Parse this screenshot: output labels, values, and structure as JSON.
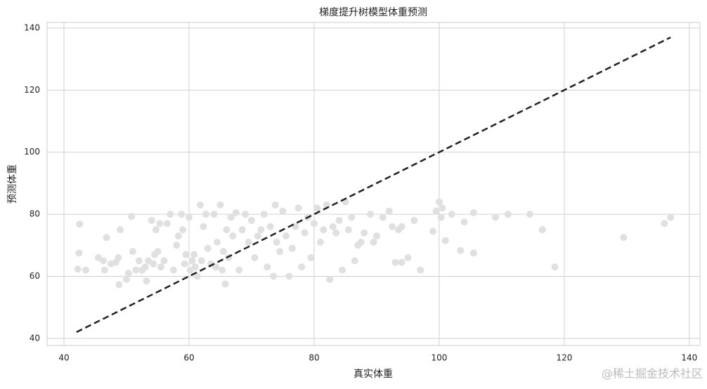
{
  "chart_data": {
    "type": "scatter",
    "title": "梯度提升树模型体重预测",
    "x_label": "真实体重",
    "y_label": "预测体重",
    "watermark": "@稀土掘金技术社区",
    "color": "#e0e0e0",
    "x": [
      42.2,
      42.4,
      42.5,
      43.5,
      45.5,
      46.3,
      46.5,
      46.8,
      47.5,
      48.3,
      48.7,
      48.8,
      49,
      50,
      50.3,
      50.8,
      51,
      51.5,
      52,
      52.5,
      53,
      53.2,
      53.5,
      54,
      54.3,
      54.5,
      54.7,
      55,
      55.3,
      55.5,
      56,
      56.5,
      57,
      57.5,
      58,
      58.3,
      58.8,
      59,
      59.3,
      59.5,
      60,
      60.2,
      60.5,
      60.8,
      61,
      61.3,
      61.8,
      62,
      62.3,
      62.7,
      63,
      63.5,
      64,
      64.3,
      64.5,
      65,
      65.3,
      65.5,
      65.8,
      66,
      66.3,
      66.7,
      67,
      67.5,
      68,
      68.5,
      69,
      69.5,
      70,
      70.5,
      71,
      71.5,
      72,
      72.5,
      73,
      73.5,
      73.8,
      74,
      74.5,
      75,
      75.5,
      76,
      76.5,
      77,
      77.5,
      78,
      78.5,
      79,
      79.5,
      80,
      80.5,
      81,
      81.5,
      82,
      82.5,
      83,
      83.5,
      84,
      84.5,
      85,
      85.5,
      86,
      86.5,
      87,
      87.5,
      88,
      89,
      89.5,
      90,
      91,
      92,
      92.5,
      93,
      93.5,
      94,
      94,
      95,
      96,
      97,
      99,
      99.5,
      100,
      100.5,
      101,
      102,
      104,
      105.5,
      105.5,
      109,
      111,
      114.5,
      116.5,
      118.5,
      129.5,
      136,
      137,
      103.4,
      100.3
    ],
    "y": [
      62.3,
      67.5,
      76.8,
      62,
      66,
      65,
      62,
      72.5,
      64,
      64.5,
      66,
      57.3,
      75,
      59,
      61,
      79.3,
      68,
      62,
      65,
      62,
      63,
      58.5,
      65,
      78,
      64,
      67,
      75,
      68,
      77,
      63,
      65,
      77,
      80,
      62,
      70,
      73,
      80,
      75,
      64,
      67,
      79,
      62,
      65,
      67,
      63,
      60,
      83,
      65,
      76,
      80,
      69,
      64,
      80,
      63,
      71,
      83,
      62,
      68,
      57.5,
      75,
      66,
      79,
      73,
      80.5,
      62,
      75,
      80,
      71,
      78,
      66,
      73,
      75,
      80,
      63,
      76,
      60,
      83,
      71,
      68,
      81,
      73,
      60,
      69,
      76,
      82,
      63,
      74,
      79,
      66,
      77,
      82,
      71,
      75,
      83,
      59,
      76,
      74,
      78,
      62,
      84,
      75,
      79,
      65,
      70,
      71,
      74,
      80,
      71,
      73,
      79,
      81,
      76,
      64.5,
      75,
      64.5,
      76,
      66,
      78,
      62,
      74.5,
      81,
      84,
      82,
      71.5,
      80,
      77.5,
      67.5,
      80.5,
      79,
      80,
      80,
      75,
      63,
      72.5,
      77,
      79,
      68.3,
      79
    ],
    "reference_line": {
      "x": [
        42,
        137
      ],
      "y": [
        42,
        137
      ],
      "color": "#222222"
    },
    "xlim": [
      37.3,
      141.7
    ],
    "ylim": [
      37.7,
      141.8
    ],
    "xticks": [
      40,
      60,
      80,
      100,
      120,
      140
    ],
    "yticks": [
      40,
      60,
      80,
      100,
      120,
      140
    ],
    "grid": true
  }
}
